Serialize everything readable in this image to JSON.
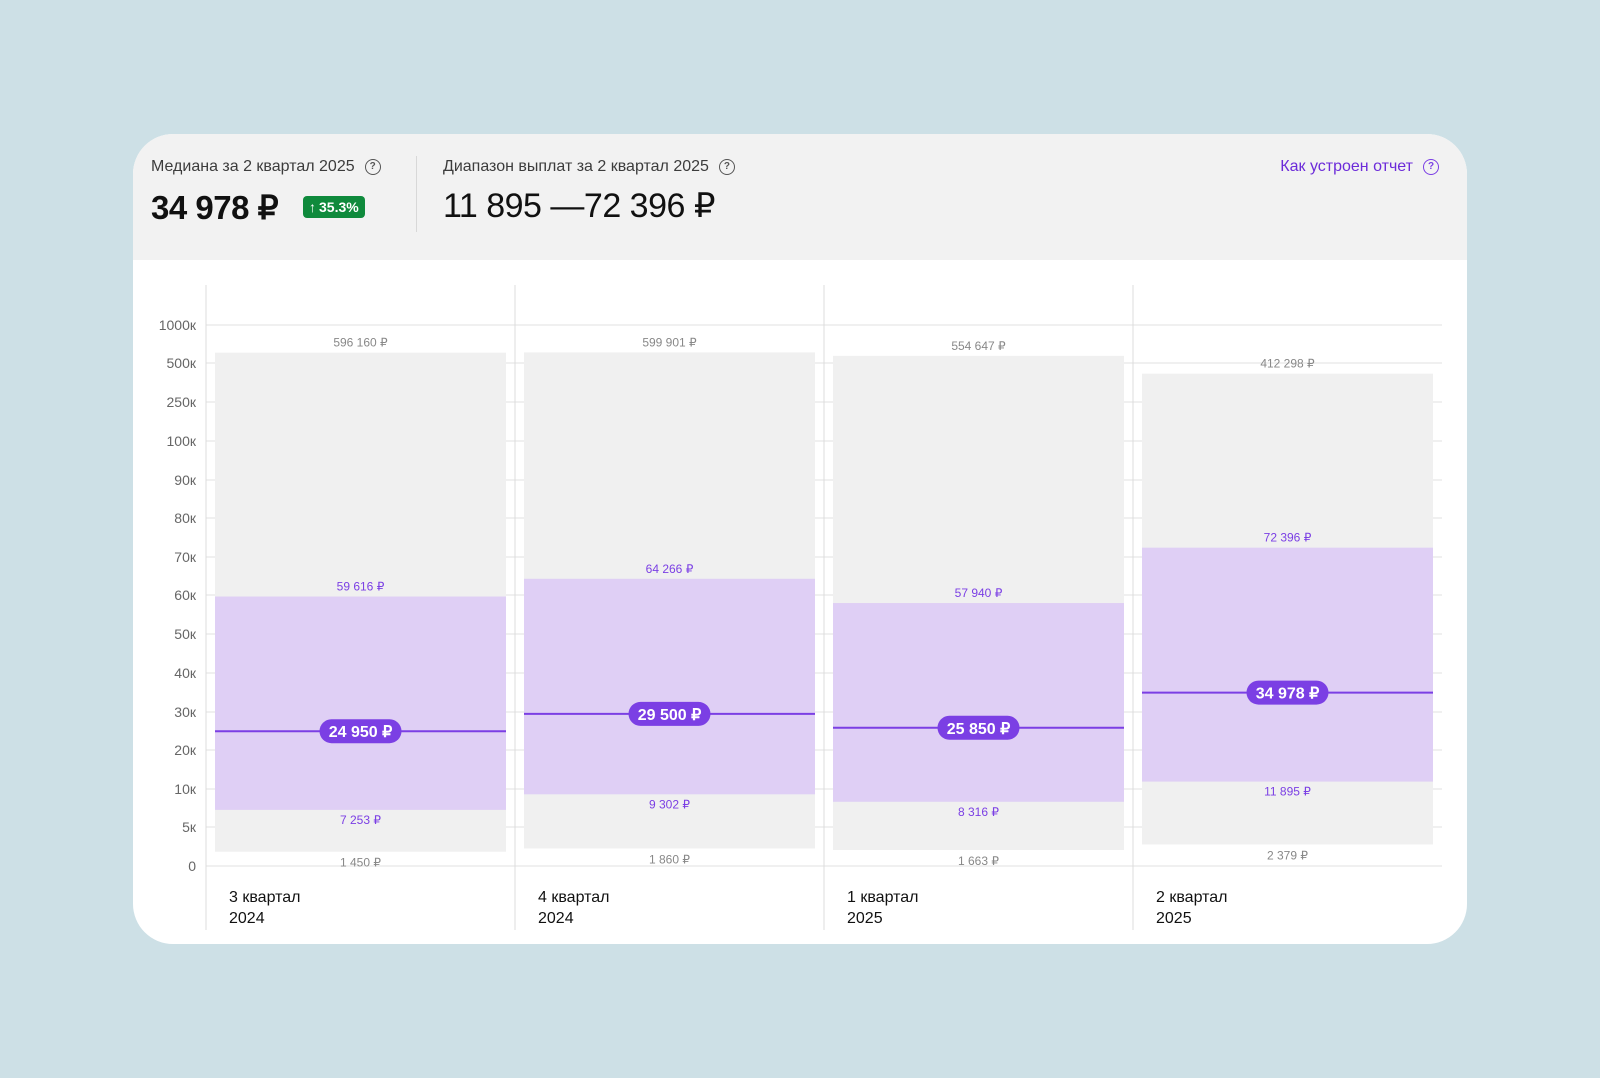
{
  "header": {
    "median_label": "Медиана за 2 квартал 2025",
    "median_value": "34 978 ₽",
    "median_change": "35.3%",
    "range_label": "Диапазон выплат за 2 квартал 2025",
    "range_value": "11 895 —72 396 ₽",
    "how_label": "Как устроен отчет"
  },
  "colors": {
    "accent": "#7b3fe4",
    "iqr_fill": "#dfcff5",
    "range_fill": "#f0f0f0",
    "badge_green": "#0f8a3c"
  },
  "chart_data": {
    "type": "box",
    "y_scale": "piecewise",
    "y_ticks": [
      0,
      5000,
      10000,
      20000,
      30000,
      40000,
      50000,
      60000,
      70000,
      80000,
      90000,
      100000,
      250000,
      500000,
      1000000
    ],
    "y_tick_labels": [
      "0",
      "5к",
      "10к",
      "20к",
      "30к",
      "40к",
      "50к",
      "60к",
      "70к",
      "80к",
      "90к",
      "100к",
      "250к",
      "500к",
      "1000к"
    ],
    "categories": [
      {
        "line1": "3 квартал",
        "line2": "2024"
      },
      {
        "line1": "4 квартал",
        "line2": "2024"
      },
      {
        "line1": "1 квартал",
        "line2": "2025"
      },
      {
        "line1": "2 квартал",
        "line2": "2025"
      }
    ],
    "series": [
      {
        "min": 1450,
        "q1": 7253,
        "median": 24950,
        "q3": 59616,
        "max": 596160,
        "min_label": "1 450 ₽",
        "q1_label": "7 253 ₽",
        "median_label": "24 950 ₽",
        "q3_label": "59 616 ₽",
        "max_label": "596 160 ₽"
      },
      {
        "min": 1860,
        "q1": 9302,
        "median": 29500,
        "q3": 64266,
        "max": 599901,
        "min_label": "1 860 ₽",
        "q1_label": "9 302 ₽",
        "median_label": "29 500 ₽",
        "q3_label": "64 266 ₽",
        "max_label": "599 901 ₽"
      },
      {
        "min": 1663,
        "q1": 8316,
        "median": 25850,
        "q3": 57940,
        "max": 554647,
        "min_label": "1 663 ₽",
        "q1_label": "8 316 ₽",
        "median_label": "25 850 ₽",
        "q3_label": "57 940 ₽",
        "max_label": "554 647 ₽"
      },
      {
        "min": 2379,
        "q1": 11895,
        "median": 34978,
        "q3": 72396,
        "max": 412298,
        "min_label": "2 379 ₽",
        "q1_label": "11 895 ₽",
        "median_label": "34 978 ₽",
        "q3_label": "72 396 ₽",
        "max_label": "412 298 ₽"
      }
    ]
  }
}
